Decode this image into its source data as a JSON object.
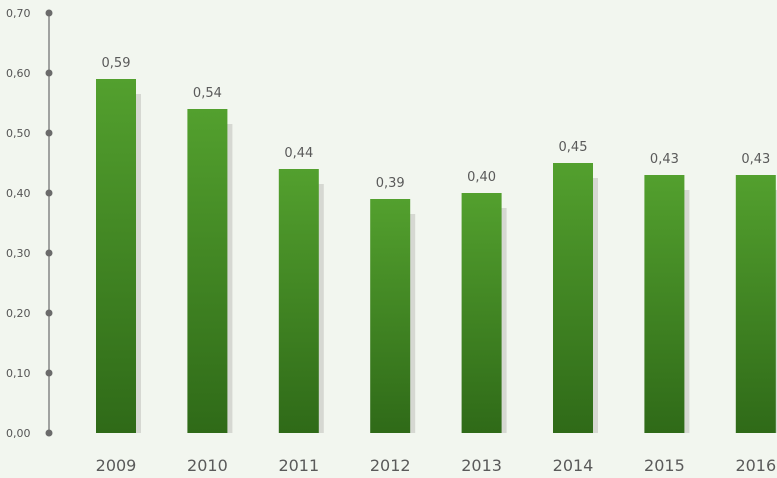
{
  "chart_data": {
    "type": "bar",
    "categories": [
      "2009",
      "2010",
      "2011",
      "2012",
      "2013",
      "2014",
      "2015",
      "2016"
    ],
    "values": [
      0.59,
      0.54,
      0.44,
      0.39,
      0.4,
      0.45,
      0.43,
      0.43
    ],
    "value_labels": [
      "0,59",
      "0,54",
      "0,44",
      "0,39",
      "0,40",
      "0,45",
      "0,43",
      "0,43"
    ],
    "yticks": [
      0.0,
      0.1,
      0.2,
      0.3,
      0.4,
      0.5,
      0.6,
      0.7
    ],
    "ytick_labels": [
      "0,00",
      "0,10",
      "0,20",
      "0,30",
      "0,40",
      "0,50",
      "0,60",
      "0,70"
    ],
    "ylim": [
      0,
      0.7
    ],
    "title": "",
    "xlabel": "",
    "ylabel": "",
    "grid": false,
    "colors": {
      "bar_top": "#53a02e",
      "bar_bottom": "#2f6a18",
      "bar_shadow": "#d6d8d2",
      "axis": "#6b6b6b",
      "background": "#f2f6ef"
    }
  }
}
